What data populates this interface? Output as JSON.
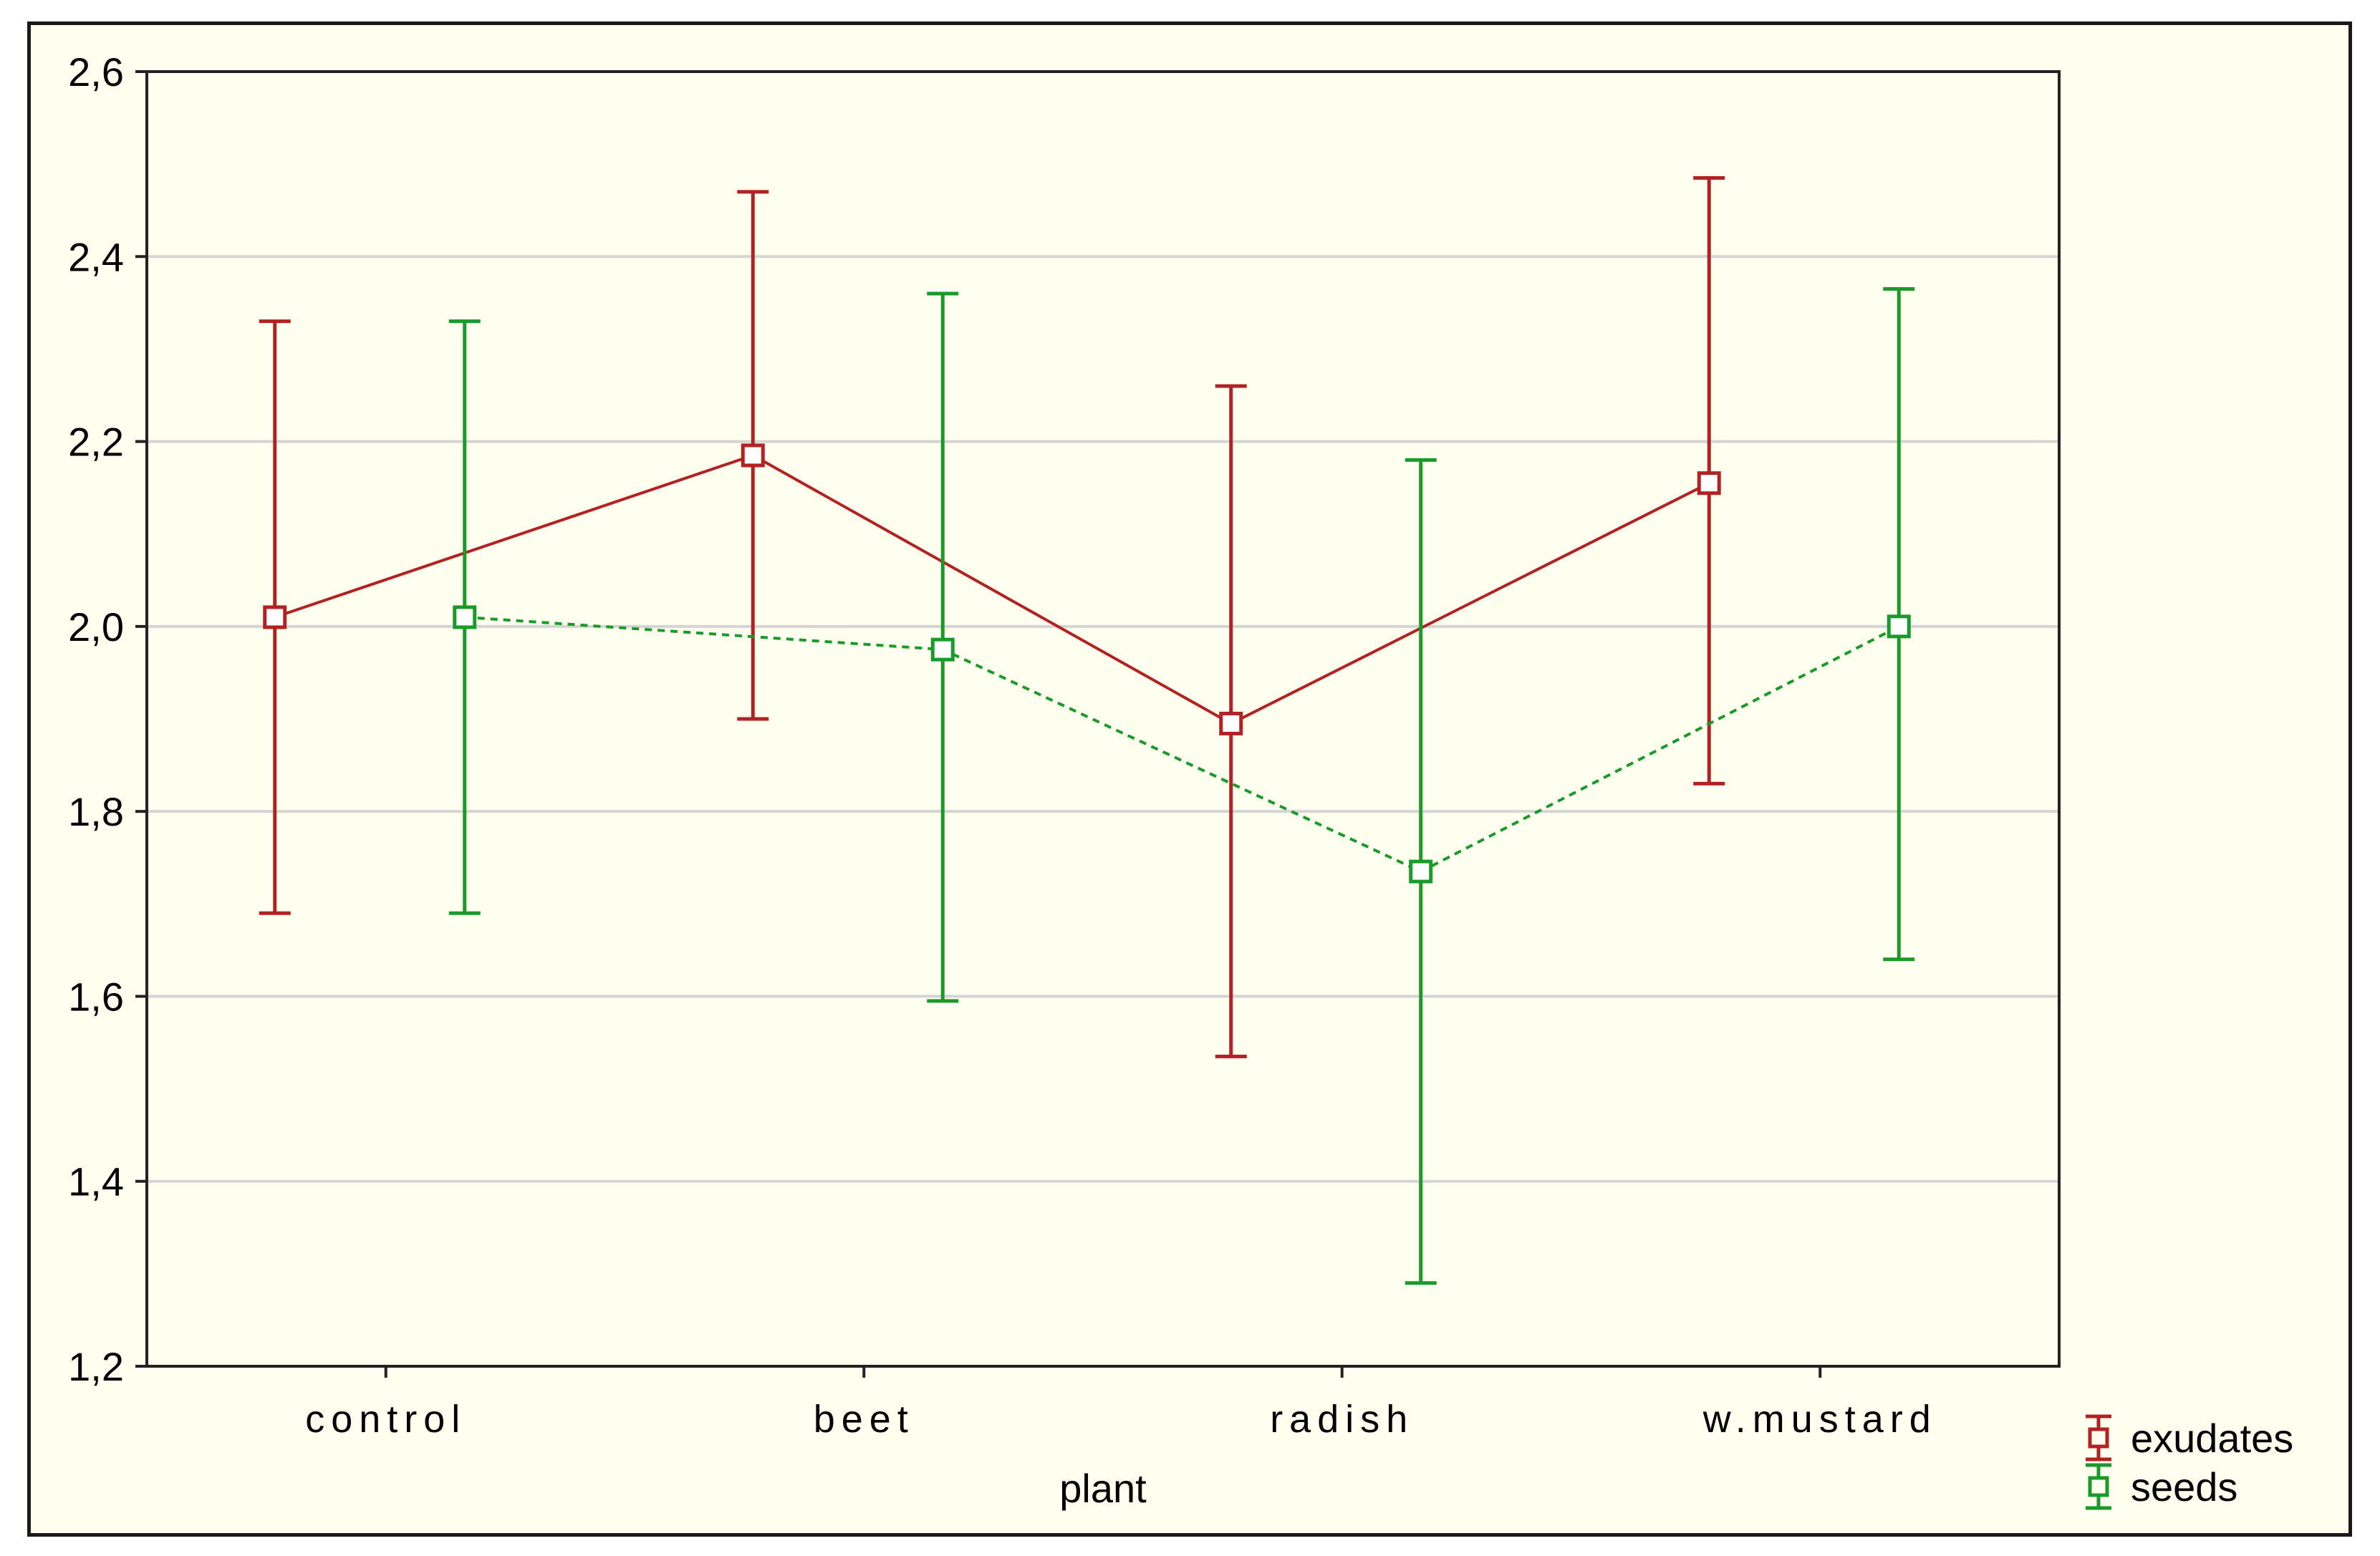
{
  "chart_data": {
    "type": "line",
    "xlabel": "plant",
    "ylabel": "",
    "categories": [
      "control",
      "beet",
      "radish",
      "w.mustard"
    ],
    "ylim": [
      1.2,
      2.6
    ],
    "yticks": [
      "1,2",
      "1,4",
      "1,6",
      "1,8",
      "2,0",
      "2,2",
      "2,4",
      "2,6"
    ],
    "ytick_values": [
      1.2,
      1.4,
      1.6,
      1.8,
      2.0,
      2.2,
      2.4,
      2.6
    ],
    "grid": true,
    "legend_position": "bottom-right",
    "series": [
      {
        "name": "exudates",
        "color": "#b22222",
        "line_style": "solid",
        "marker": "square",
        "values": [
          2.01,
          2.185,
          1.895,
          2.155
        ],
        "lower": [
          1.69,
          1.9,
          1.535,
          1.83
        ],
        "upper": [
          2.33,
          2.47,
          2.26,
          2.485
        ]
      },
      {
        "name": "seeds",
        "color": "#1a9a2a",
        "line_style": "dashed",
        "marker": "square",
        "values": [
          2.01,
          1.975,
          1.735,
          2.0
        ],
        "lower": [
          1.69,
          1.595,
          1.29,
          1.64
        ],
        "upper": [
          2.33,
          2.36,
          2.18,
          2.365
        ]
      }
    ]
  }
}
